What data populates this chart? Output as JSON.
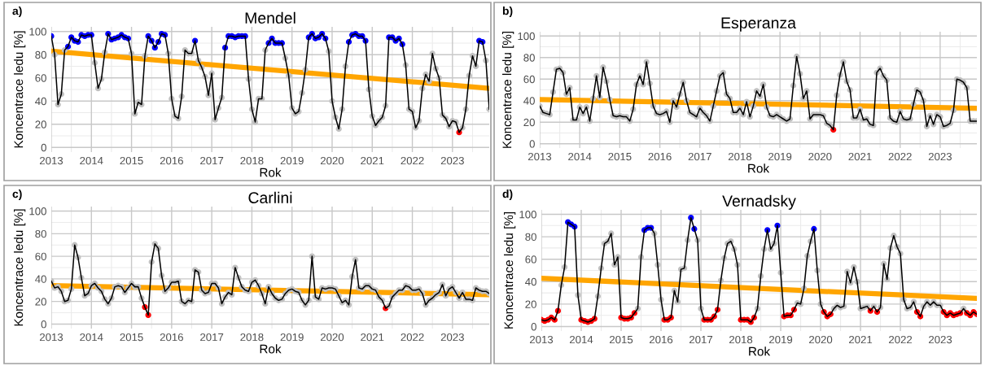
{
  "chart_data": [
    {
      "type": "line",
      "title": "Mendel",
      "xlabel": "Rok",
      "ylabel": "Koncentrace ledu [%]",
      "annotations": [
        "a)"
      ],
      "grid": true,
      "legend": false,
      "xlim": [
        "2013-01",
        "2023-12"
      ],
      "ylim": [
        -4,
        104
      ],
      "xticks": [
        "2013",
        "2014",
        "2015",
        "2016",
        "2017",
        "2018",
        "2019",
        "2020",
        "2021",
        "2022",
        "2023"
      ],
      "yticks": [
        0,
        20,
        40,
        60,
        80,
        100
      ],
      "x": [
        "2013-01",
        "2013-02",
        "2013-03",
        "2013-04",
        "2013-05",
        "2013-06",
        "2013-07",
        "2013-08",
        "2013-09",
        "2013-10",
        "2013-11",
        "2013-12",
        "2014-01",
        "2014-02",
        "2014-03",
        "2014-04",
        "2014-05",
        "2014-06",
        "2014-07",
        "2014-08",
        "2014-09",
        "2014-10",
        "2014-11",
        "2014-12",
        "2015-01",
        "2015-02",
        "2015-03",
        "2015-04",
        "2015-05",
        "2015-06",
        "2015-07",
        "2015-08",
        "2015-09",
        "2015-10",
        "2015-11",
        "2015-12",
        "2016-01",
        "2016-02",
        "2016-03",
        "2016-04",
        "2016-05",
        "2016-06",
        "2016-07",
        "2016-08",
        "2016-09",
        "2016-10",
        "2016-11",
        "2016-12",
        "2017-01",
        "2017-02",
        "2017-03",
        "2017-04",
        "2017-05",
        "2017-06",
        "2017-07",
        "2017-08",
        "2017-09",
        "2017-10",
        "2017-11",
        "2017-12",
        "2018-01",
        "2018-02",
        "2018-03",
        "2018-04",
        "2018-05",
        "2018-06",
        "2018-07",
        "2018-08",
        "2018-09",
        "2018-10",
        "2018-11",
        "2018-12",
        "2019-01",
        "2019-02",
        "2019-03",
        "2019-04",
        "2019-05",
        "2019-06",
        "2019-07",
        "2019-08",
        "2019-09",
        "2019-10",
        "2019-11",
        "2019-12",
        "2020-01",
        "2020-02",
        "2020-03",
        "2020-04",
        "2020-05",
        "2020-06",
        "2020-07",
        "2020-08",
        "2020-09",
        "2020-10",
        "2020-11",
        "2020-12",
        "2021-01",
        "2021-02",
        "2021-03",
        "2021-04",
        "2021-05",
        "2021-06",
        "2021-07",
        "2021-08",
        "2021-09",
        "2021-10",
        "2021-11",
        "2021-12",
        "2022-01",
        "2022-02",
        "2022-03",
        "2022-04",
        "2022-05",
        "2022-06",
        "2022-07",
        "2022-08",
        "2022-09",
        "2022-10",
        "2022-11",
        "2022-12",
        "2023-01",
        "2023-02",
        "2023-03",
        "2023-04",
        "2023-05",
        "2023-06",
        "2023-07",
        "2023-08",
        "2023-09",
        "2023-10",
        "2023-11",
        "2023-12"
      ],
      "series": [
        {
          "color": "#000000",
          "marker": "circle",
          "values": [
            96,
            80,
            37,
            46,
            84,
            87,
            95,
            92,
            91,
            97,
            96,
            97,
            97,
            73,
            51,
            59,
            82,
            98,
            93,
            94,
            95,
            97,
            95,
            94,
            81,
            29,
            39,
            37,
            79,
            96,
            92,
            86,
            91,
            98,
            97,
            81,
            42,
            27,
            25,
            44,
            84,
            81,
            81,
            92,
            75,
            69,
            61,
            45,
            64,
            24,
            34,
            43,
            86,
            96,
            96,
            95,
            96,
            96,
            96,
            59,
            33,
            22,
            42,
            42,
            84,
            90,
            94,
            90,
            90,
            90,
            77,
            62,
            34,
            29,
            31,
            47,
            67,
            95,
            98,
            94,
            95,
            98,
            94,
            83,
            40,
            26,
            16,
            33,
            70,
            91,
            97,
            98,
            96,
            96,
            92,
            50,
            27,
            19,
            23,
            26,
            36,
            95,
            95,
            92,
            94,
            89,
            71,
            33,
            31,
            17,
            23,
            51,
            63,
            57,
            81,
            68,
            60,
            28,
            25,
            18,
            23,
            22,
            13,
            17,
            33,
            62,
            79,
            70,
            92,
            91,
            75,
            33
          ],
          "colors": [
            "#0000ff",
            "#c0c0c0",
            "#c0c0c0",
            "#c0c0c0",
            "#c0c0c0",
            "#0000ff",
            "#0000ff",
            "#0000ff",
            "#0000ff",
            "#0000ff",
            "#0000ff",
            "#0000ff",
            "#0000ff",
            "#c0c0c0",
            "#c0c0c0",
            "#c0c0c0",
            "#c0c0c0",
            "#0000ff",
            "#0000ff",
            "#0000ff",
            "#0000ff",
            "#0000ff",
            "#0000ff",
            "#0000ff",
            "#c0c0c0",
            "#c0c0c0",
            "#c0c0c0",
            "#c0c0c0",
            "#c0c0c0",
            "#0000ff",
            "#0000ff",
            "#0000ff",
            "#0000ff",
            "#0000ff",
            "#0000ff",
            "#c0c0c0",
            "#c0c0c0",
            "#c0c0c0",
            "#c0c0c0",
            "#c0c0c0",
            "#c0c0c0",
            "#c0c0c0",
            "#c0c0c0",
            "#0000ff",
            "#c0c0c0",
            "#c0c0c0",
            "#c0c0c0",
            "#c0c0c0",
            "#c0c0c0",
            "#c0c0c0",
            "#c0c0c0",
            "#c0c0c0",
            "#0000ff",
            "#0000ff",
            "#0000ff",
            "#0000ff",
            "#0000ff",
            "#0000ff",
            "#0000ff",
            "#c0c0c0",
            "#c0c0c0",
            "#c0c0c0",
            "#c0c0c0",
            "#c0c0c0",
            "#c0c0c0",
            "#0000ff",
            "#0000ff",
            "#0000ff",
            "#0000ff",
            "#0000ff",
            "#c0c0c0",
            "#c0c0c0",
            "#c0c0c0",
            "#c0c0c0",
            "#c0c0c0",
            "#c0c0c0",
            "#c0c0c0",
            "#0000ff",
            "#0000ff",
            "#0000ff",
            "#0000ff",
            "#0000ff",
            "#0000ff",
            "#c0c0c0",
            "#c0c0c0",
            "#c0c0c0",
            "#c0c0c0",
            "#c0c0c0",
            "#c0c0c0",
            "#0000ff",
            "#0000ff",
            "#0000ff",
            "#0000ff",
            "#0000ff",
            "#0000ff",
            "#c0c0c0",
            "#c0c0c0",
            "#c0c0c0",
            "#c0c0c0",
            "#c0c0c0",
            "#c0c0c0",
            "#0000ff",
            "#0000ff",
            "#0000ff",
            "#0000ff",
            "#0000ff",
            "#c0c0c0",
            "#c0c0c0",
            "#c0c0c0",
            "#c0c0c0",
            "#c0c0c0",
            "#c0c0c0",
            "#c0c0c0",
            "#c0c0c0",
            "#c0c0c0",
            "#c0c0c0",
            "#c0c0c0",
            "#c0c0c0",
            "#c0c0c0",
            "#c0c0c0",
            "#c0c0c0",
            "#c0c0c0",
            "#ff0000",
            "#c0c0c0",
            "#c0c0c0",
            "#c0c0c0",
            "#c0c0c0",
            "#c0c0c0",
            "#0000ff",
            "#0000ff",
            "#c0c0c0",
            "#c0c0c0"
          ]
        },
        {
          "type": "line",
          "color": "#ffa500",
          "marker": "none",
          "x": [
            "2013-01",
            "2023-12"
          ],
          "values": [
            83,
            51
          ]
        }
      ]
    },
    {
      "type": "line",
      "title": "Esperanza",
      "xlabel": "Rok",
      "ylabel": "Koncentrace ledu [%]",
      "annotations": [
        "b)"
      ],
      "grid": true,
      "legend": false,
      "xlim": [
        "2013-01",
        "2023-12"
      ],
      "ylim": [
        -4,
        104
      ],
      "xticks": [
        "2013",
        "2014",
        "2015",
        "2016",
        "2017",
        "2018",
        "2019",
        "2020",
        "2021",
        "2022",
        "2023"
      ],
      "yticks": [
        0,
        20,
        40,
        60,
        80,
        100
      ],
      "x": [
        "2013-01",
        "2013-02",
        "2013-03",
        "2013-04",
        "2013-05",
        "2013-06",
        "2013-07",
        "2013-08",
        "2013-09",
        "2013-10",
        "2013-11",
        "2013-12",
        "2014-01",
        "2014-02",
        "2014-03",
        "2014-04",
        "2014-05",
        "2014-06",
        "2014-07",
        "2014-08",
        "2014-09",
        "2014-10",
        "2014-11",
        "2014-12",
        "2015-01",
        "2015-02",
        "2015-03",
        "2015-04",
        "2015-05",
        "2015-06",
        "2015-07",
        "2015-08",
        "2015-09",
        "2015-10",
        "2015-11",
        "2015-12",
        "2016-01",
        "2016-02",
        "2016-03",
        "2016-04",
        "2016-05",
        "2016-06",
        "2016-07",
        "2016-08",
        "2016-09",
        "2016-10",
        "2016-11",
        "2016-12",
        "2017-01",
        "2017-02",
        "2017-03",
        "2017-04",
        "2017-05",
        "2017-06",
        "2017-07",
        "2017-08",
        "2017-09",
        "2017-10",
        "2017-11",
        "2017-12",
        "2018-01",
        "2018-02",
        "2018-03",
        "2018-04",
        "2018-05",
        "2018-06",
        "2018-07",
        "2018-08",
        "2018-09",
        "2018-10",
        "2018-11",
        "2018-12",
        "2019-01",
        "2019-02",
        "2019-03",
        "2019-04",
        "2019-05",
        "2019-06",
        "2019-07",
        "2019-08",
        "2019-09",
        "2019-10",
        "2019-11",
        "2019-12",
        "2020-01",
        "2020-02",
        "2020-03",
        "2020-04",
        "2020-05",
        "2020-06",
        "2020-07",
        "2020-08",
        "2020-09",
        "2020-10",
        "2020-11",
        "2020-12",
        "2021-01",
        "2021-02",
        "2021-03",
        "2021-04",
        "2021-05",
        "2021-06",
        "2021-07",
        "2021-08",
        "2021-09",
        "2021-10",
        "2021-11",
        "2021-12",
        "2022-01",
        "2022-02",
        "2022-03",
        "2022-04",
        "2022-05",
        "2022-06",
        "2022-07",
        "2022-08",
        "2022-09",
        "2022-10",
        "2022-11",
        "2022-12",
        "2023-01",
        "2023-02",
        "2023-03",
        "2023-04",
        "2023-05",
        "2023-06",
        "2023-07",
        "2023-08",
        "2023-09",
        "2023-10",
        "2023-11",
        "2023-12"
      ],
      "series": [
        {
          "color": "#000000",
          "marker": "circle",
          "values": [
            35,
            29,
            28,
            27,
            48,
            69,
            70,
            66,
            46,
            52,
            22,
            22,
            34,
            28,
            34,
            21,
            42,
            63,
            43,
            71,
            58,
            41,
            26,
            25,
            26,
            25,
            25,
            21,
            32,
            55,
            63,
            55,
            76,
            56,
            35,
            28,
            27,
            28,
            30,
            20,
            40,
            34,
            46,
            57,
            40,
            29,
            27,
            25,
            33,
            29,
            26,
            21,
            35,
            49,
            63,
            66,
            46,
            42,
            29,
            29,
            33,
            27,
            39,
            25,
            35,
            49,
            44,
            55,
            34,
            26,
            25,
            27,
            25,
            23,
            21,
            23,
            54,
            81,
            65,
            42,
            49,
            23,
            27,
            27,
            27,
            26,
            19,
            17,
            13,
            45,
            64,
            76,
            58,
            50,
            24,
            24,
            32,
            22,
            23,
            18,
            17,
            66,
            70,
            63,
            59,
            24,
            21,
            20,
            30,
            23,
            22,
            23,
            37,
            50,
            48,
            40,
            16,
            26,
            18,
            27,
            25,
            16,
            17,
            19,
            31,
            60,
            59,
            57,
            52,
            21,
            21,
            21
          ],
          "colors": [
            "#c0c0c0",
            "#c0c0c0",
            "#c0c0c0",
            "#c0c0c0",
            "#c0c0c0",
            "#c0c0c0",
            "#c0c0c0",
            "#c0c0c0",
            "#c0c0c0",
            "#c0c0c0",
            "#c0c0c0",
            "#c0c0c0",
            "#c0c0c0",
            "#c0c0c0",
            "#c0c0c0",
            "#c0c0c0",
            "#c0c0c0",
            "#c0c0c0",
            "#c0c0c0",
            "#c0c0c0",
            "#c0c0c0",
            "#c0c0c0",
            "#c0c0c0",
            "#c0c0c0",
            "#c0c0c0",
            "#c0c0c0",
            "#c0c0c0",
            "#c0c0c0",
            "#c0c0c0",
            "#c0c0c0",
            "#c0c0c0",
            "#c0c0c0",
            "#c0c0c0",
            "#c0c0c0",
            "#c0c0c0",
            "#c0c0c0",
            "#c0c0c0",
            "#c0c0c0",
            "#c0c0c0",
            "#c0c0c0",
            "#c0c0c0",
            "#c0c0c0",
            "#c0c0c0",
            "#c0c0c0",
            "#c0c0c0",
            "#c0c0c0",
            "#c0c0c0",
            "#c0c0c0",
            "#c0c0c0",
            "#c0c0c0",
            "#c0c0c0",
            "#c0c0c0",
            "#c0c0c0",
            "#c0c0c0",
            "#c0c0c0",
            "#c0c0c0",
            "#c0c0c0",
            "#c0c0c0",
            "#c0c0c0",
            "#c0c0c0",
            "#c0c0c0",
            "#c0c0c0",
            "#c0c0c0",
            "#c0c0c0",
            "#c0c0c0",
            "#c0c0c0",
            "#c0c0c0",
            "#c0c0c0",
            "#c0c0c0",
            "#c0c0c0",
            "#c0c0c0",
            "#c0c0c0",
            "#c0c0c0",
            "#c0c0c0",
            "#c0c0c0",
            "#c0c0c0",
            "#c0c0c0",
            "#c0c0c0",
            "#c0c0c0",
            "#c0c0c0",
            "#c0c0c0",
            "#c0c0c0",
            "#c0c0c0",
            "#c0c0c0",
            "#c0c0c0",
            "#c0c0c0",
            "#c0c0c0",
            "#c0c0c0",
            "#ff0000",
            "#c0c0c0",
            "#c0c0c0",
            "#c0c0c0",
            "#c0c0c0",
            "#c0c0c0",
            "#c0c0c0",
            "#c0c0c0",
            "#c0c0c0",
            "#c0c0c0",
            "#c0c0c0",
            "#c0c0c0",
            "#c0c0c0",
            "#c0c0c0",
            "#c0c0c0",
            "#c0c0c0",
            "#c0c0c0",
            "#c0c0c0",
            "#c0c0c0",
            "#c0c0c0",
            "#c0c0c0",
            "#c0c0c0",
            "#c0c0c0",
            "#c0c0c0",
            "#c0c0c0",
            "#c0c0c0",
            "#c0c0c0",
            "#c0c0c0",
            "#c0c0c0",
            "#c0c0c0",
            "#c0c0c0",
            "#c0c0c0",
            "#c0c0c0",
            "#c0c0c0",
            "#c0c0c0",
            "#c0c0c0",
            "#c0c0c0",
            "#c0c0c0",
            "#c0c0c0",
            "#c0c0c0",
            "#c0c0c0",
            "#c0c0c0",
            "#c0c0c0",
            "#c0c0c0"
          ]
        },
        {
          "type": "line",
          "color": "#ffa500",
          "marker": "none",
          "x": [
            "2013-01",
            "2023-12"
          ],
          "values": [
            41,
            33
          ]
        }
      ]
    },
    {
      "type": "line",
      "title": "Carlini",
      "xlabel": "Rok",
      "ylabel": "Koncentrace ledu [%]",
      "annotations": [
        "c)"
      ],
      "grid": true,
      "legend": false,
      "xlim": [
        "2013-01",
        "2023-12"
      ],
      "ylim": [
        -4,
        104
      ],
      "xticks": [
        "2013",
        "2014",
        "2015",
        "2016",
        "2017",
        "2018",
        "2019",
        "2020",
        "2021",
        "2022",
        "2023"
      ],
      "yticks": [
        0,
        20,
        40,
        60,
        80,
        100
      ],
      "x": [
        "2013-01",
        "2013-02",
        "2013-03",
        "2013-04",
        "2013-05",
        "2013-06",
        "2013-07",
        "2013-08",
        "2013-09",
        "2013-10",
        "2013-11",
        "2013-12",
        "2014-01",
        "2014-02",
        "2014-03",
        "2014-04",
        "2014-05",
        "2014-06",
        "2014-07",
        "2014-08",
        "2014-09",
        "2014-10",
        "2014-11",
        "2014-12",
        "2015-01",
        "2015-02",
        "2015-03",
        "2015-04",
        "2015-05",
        "2015-06",
        "2015-07",
        "2015-08",
        "2015-09",
        "2015-10",
        "2015-11",
        "2015-12",
        "2016-01",
        "2016-02",
        "2016-03",
        "2016-04",
        "2016-05",
        "2016-06",
        "2016-07",
        "2016-08",
        "2016-09",
        "2016-10",
        "2016-11",
        "2016-12",
        "2017-01",
        "2017-02",
        "2017-03",
        "2017-04",
        "2017-05",
        "2017-06",
        "2017-07",
        "2017-08",
        "2017-09",
        "2017-10",
        "2017-11",
        "2017-12",
        "2018-01",
        "2018-02",
        "2018-03",
        "2018-04",
        "2018-05",
        "2018-06",
        "2018-07",
        "2018-08",
        "2018-09",
        "2018-10",
        "2018-11",
        "2018-12",
        "2019-01",
        "2019-02",
        "2019-03",
        "2019-04",
        "2019-05",
        "2019-06",
        "2019-07",
        "2019-08",
        "2019-09",
        "2019-10",
        "2019-11",
        "2019-12",
        "2020-01",
        "2020-02",
        "2020-03",
        "2020-04",
        "2020-05",
        "2020-06",
        "2020-07",
        "2020-08",
        "2020-09",
        "2020-10",
        "2020-11",
        "2020-12",
        "2021-01",
        "2021-02",
        "2021-03",
        "2021-04",
        "2021-05",
        "2021-06",
        "2021-07",
        "2021-08",
        "2021-09",
        "2021-10",
        "2021-11",
        "2021-12",
        "2022-01",
        "2022-02",
        "2022-03",
        "2022-04",
        "2022-05",
        "2022-06",
        "2022-07",
        "2022-08",
        "2022-09",
        "2022-10",
        "2022-11",
        "2022-12",
        "2023-01",
        "2023-02",
        "2023-03",
        "2023-04",
        "2023-05",
        "2023-06",
        "2023-07",
        "2023-08",
        "2023-09",
        "2023-10",
        "2023-11",
        "2023-12"
      ],
      "series": [
        {
          "color": "#000000",
          "marker": "circle",
          "values": [
            38,
            32,
            33,
            29,
            20,
            21,
            31,
            70,
            59,
            41,
            25,
            27,
            34,
            36,
            32,
            29,
            22,
            18,
            23,
            33,
            34,
            33,
            28,
            32,
            36,
            33,
            33,
            23,
            15,
            8,
            55,
            71,
            67,
            43,
            29,
            32,
            37,
            37,
            38,
            20,
            18,
            21,
            20,
            48,
            46,
            30,
            27,
            28,
            36,
            36,
            32,
            18,
            24,
            28,
            26,
            50,
            41,
            33,
            30,
            29,
            37,
            39,
            34,
            27,
            18,
            33,
            27,
            23,
            21,
            22,
            27,
            30,
            31,
            29,
            28,
            21,
            17,
            21,
            60,
            24,
            22,
            32,
            31,
            32,
            32,
            31,
            25,
            19,
            21,
            17,
            42,
            57,
            32,
            31,
            34,
            34,
            31,
            30,
            24,
            21,
            14,
            16,
            24,
            27,
            30,
            30,
            34,
            33,
            30,
            30,
            31,
            27,
            17,
            21,
            23,
            26,
            28,
            35,
            25,
            31,
            33,
            28,
            23,
            28,
            22,
            22,
            21,
            32,
            30,
            29,
            29,
            27
          ],
          "colors": [
            "#c0c0c0",
            "#c0c0c0",
            "#c0c0c0",
            "#c0c0c0",
            "#c0c0c0",
            "#c0c0c0",
            "#c0c0c0",
            "#c0c0c0",
            "#c0c0c0",
            "#c0c0c0",
            "#c0c0c0",
            "#c0c0c0",
            "#c0c0c0",
            "#c0c0c0",
            "#c0c0c0",
            "#c0c0c0",
            "#c0c0c0",
            "#c0c0c0",
            "#c0c0c0",
            "#c0c0c0",
            "#c0c0c0",
            "#c0c0c0",
            "#c0c0c0",
            "#c0c0c0",
            "#c0c0c0",
            "#c0c0c0",
            "#c0c0c0",
            "#c0c0c0",
            "#ff0000",
            "#ff0000",
            "#c0c0c0",
            "#c0c0c0",
            "#c0c0c0",
            "#c0c0c0",
            "#c0c0c0",
            "#c0c0c0",
            "#c0c0c0",
            "#c0c0c0",
            "#c0c0c0",
            "#c0c0c0",
            "#c0c0c0",
            "#c0c0c0",
            "#c0c0c0",
            "#c0c0c0",
            "#c0c0c0",
            "#c0c0c0",
            "#c0c0c0",
            "#c0c0c0",
            "#c0c0c0",
            "#c0c0c0",
            "#c0c0c0",
            "#c0c0c0",
            "#c0c0c0",
            "#c0c0c0",
            "#c0c0c0",
            "#c0c0c0",
            "#c0c0c0",
            "#c0c0c0",
            "#c0c0c0",
            "#c0c0c0",
            "#c0c0c0",
            "#c0c0c0",
            "#c0c0c0",
            "#c0c0c0",
            "#c0c0c0",
            "#c0c0c0",
            "#c0c0c0",
            "#c0c0c0",
            "#c0c0c0",
            "#c0c0c0",
            "#c0c0c0",
            "#c0c0c0",
            "#c0c0c0",
            "#c0c0c0",
            "#c0c0c0",
            "#c0c0c0",
            "#c0c0c0",
            "#c0c0c0",
            "#c0c0c0",
            "#c0c0c0",
            "#c0c0c0",
            "#c0c0c0",
            "#c0c0c0",
            "#c0c0c0",
            "#c0c0c0",
            "#c0c0c0",
            "#c0c0c0",
            "#c0c0c0",
            "#c0c0c0",
            "#c0c0c0",
            "#c0c0c0",
            "#c0c0c0",
            "#c0c0c0",
            "#c0c0c0",
            "#c0c0c0",
            "#c0c0c0",
            "#c0c0c0",
            "#c0c0c0",
            "#c0c0c0",
            "#c0c0c0",
            "#ff0000",
            "#c0c0c0",
            "#c0c0c0",
            "#c0c0c0",
            "#c0c0c0",
            "#c0c0c0",
            "#c0c0c0",
            "#c0c0c0",
            "#c0c0c0",
            "#c0c0c0",
            "#c0c0c0",
            "#c0c0c0",
            "#c0c0c0",
            "#c0c0c0",
            "#c0c0c0",
            "#c0c0c0",
            "#c0c0c0",
            "#c0c0c0",
            "#c0c0c0",
            "#c0c0c0",
            "#c0c0c0",
            "#c0c0c0",
            "#c0c0c0",
            "#c0c0c0",
            "#c0c0c0",
            "#c0c0c0",
            "#c0c0c0",
            "#c0c0c0",
            "#c0c0c0",
            "#c0c0c0",
            "#c0c0c0",
            "#c0c0c0"
          ]
        },
        {
          "type": "line",
          "color": "#ffa500",
          "marker": "none",
          "x": [
            "2013-01",
            "2023-12"
          ],
          "values": [
            34,
            26
          ]
        }
      ]
    },
    {
      "type": "line",
      "title": "Vernadsky",
      "xlabel": "Rok",
      "ylabel": "Koncentrace ledu [%]",
      "annotations": [
        "d)"
      ],
      "grid": true,
      "legend": false,
      "xlim": [
        "2013-01",
        "2023-12"
      ],
      "ylim": [
        -4,
        104
      ],
      "xticks": [
        "2013",
        "2014",
        "2015",
        "2016",
        "2017",
        "2018",
        "2019",
        "2020",
        "2021",
        "2022",
        "2023"
      ],
      "yticks": [
        0,
        20,
        40,
        60,
        80,
        100
      ],
      "x": [
        "2013-01",
        "2013-02",
        "2013-03",
        "2013-04",
        "2013-05",
        "2013-06",
        "2013-07",
        "2013-08",
        "2013-09",
        "2013-10",
        "2013-11",
        "2013-12",
        "2014-01",
        "2014-02",
        "2014-03",
        "2014-04",
        "2014-05",
        "2014-06",
        "2014-07",
        "2014-08",
        "2014-09",
        "2014-10",
        "2014-11",
        "2014-12",
        "2015-01",
        "2015-02",
        "2015-03",
        "2015-04",
        "2015-05",
        "2015-06",
        "2015-07",
        "2015-08",
        "2015-09",
        "2015-10",
        "2015-11",
        "2015-12",
        "2016-01",
        "2016-02",
        "2016-03",
        "2016-04",
        "2016-05",
        "2016-06",
        "2016-07",
        "2016-08",
        "2016-09",
        "2016-10",
        "2016-11",
        "2016-12",
        "2017-01",
        "2017-02",
        "2017-03",
        "2017-04",
        "2017-05",
        "2017-06",
        "2017-07",
        "2017-08",
        "2017-09",
        "2017-10",
        "2017-11",
        "2017-12",
        "2018-01",
        "2018-02",
        "2018-03",
        "2018-04",
        "2018-05",
        "2018-06",
        "2018-07",
        "2018-08",
        "2018-09",
        "2018-10",
        "2018-11",
        "2018-12",
        "2019-01",
        "2019-02",
        "2019-03",
        "2019-04",
        "2019-05",
        "2019-06",
        "2019-07",
        "2019-08",
        "2019-09",
        "2019-10",
        "2019-11",
        "2019-12",
        "2020-01",
        "2020-02",
        "2020-03",
        "2020-04",
        "2020-05",
        "2020-06",
        "2020-07",
        "2020-08",
        "2020-09",
        "2020-10",
        "2020-11",
        "2020-12",
        "2021-01",
        "2021-02",
        "2021-03",
        "2021-04",
        "2021-05",
        "2021-06",
        "2021-07",
        "2021-08",
        "2021-09",
        "2021-10",
        "2021-11",
        "2021-12",
        "2022-01",
        "2022-02",
        "2022-03",
        "2022-04",
        "2022-05",
        "2022-06",
        "2022-07",
        "2022-08",
        "2022-09",
        "2022-10",
        "2022-11",
        "2022-12",
        "2023-01",
        "2023-02",
        "2023-03",
        "2023-04",
        "2023-05",
        "2023-06",
        "2023-07",
        "2023-08",
        "2023-09",
        "2023-10",
        "2023-11",
        "2023-12"
      ],
      "series": [
        {
          "color": "#000000",
          "marker": "circle",
          "values": [
            6,
            5,
            6,
            8,
            6,
            14,
            37,
            53,
            93,
            91,
            89,
            28,
            6,
            5,
            4,
            5,
            7,
            27,
            52,
            74,
            76,
            83,
            55,
            62,
            8,
            7,
            7,
            8,
            12,
            16,
            62,
            86,
            88,
            88,
            83,
            55,
            24,
            6,
            6,
            8,
            32,
            22,
            51,
            52,
            77,
            97,
            87,
            77,
            16,
            6,
            6,
            6,
            9,
            15,
            41,
            61,
            74,
            76,
            69,
            55,
            6,
            6,
            6,
            4,
            8,
            16,
            45,
            69,
            86,
            69,
            74,
            90,
            48,
            9,
            10,
            10,
            15,
            21,
            20,
            34,
            63,
            76,
            87,
            50,
            20,
            13,
            9,
            11,
            16,
            19,
            17,
            18,
            49,
            39,
            53,
            40,
            16,
            17,
            18,
            14,
            18,
            13,
            17,
            56,
            42,
            70,
            81,
            71,
            65,
            24,
            16,
            17,
            22,
            13,
            9,
            18,
            22,
            19,
            22,
            19,
            19,
            13,
            10,
            12,
            10,
            11,
            12,
            16,
            12,
            10,
            13,
            11
          ],
          "colors": [
            "#ff0000",
            "#ff0000",
            "#ff0000",
            "#ff0000",
            "#ff0000",
            "#ff0000",
            "#c0c0c0",
            "#c0c0c0",
            "#0000ff",
            "#0000ff",
            "#0000ff",
            "#c0c0c0",
            "#ff0000",
            "#ff0000",
            "#ff0000",
            "#ff0000",
            "#ff0000",
            "#c0c0c0",
            "#c0c0c0",
            "#c0c0c0",
            "#c0c0c0",
            "#c0c0c0",
            "#c0c0c0",
            "#c0c0c0",
            "#ff0000",
            "#ff0000",
            "#ff0000",
            "#ff0000",
            "#ff0000",
            "#c0c0c0",
            "#c0c0c0",
            "#0000ff",
            "#0000ff",
            "#0000ff",
            "#c0c0c0",
            "#c0c0c0",
            "#c0c0c0",
            "#ff0000",
            "#ff0000",
            "#ff0000",
            "#c0c0c0",
            "#c0c0c0",
            "#c0c0c0",
            "#c0c0c0",
            "#c0c0c0",
            "#0000ff",
            "#0000ff",
            "#c0c0c0",
            "#c0c0c0",
            "#ff0000",
            "#ff0000",
            "#ff0000",
            "#ff0000",
            "#ff0000",
            "#c0c0c0",
            "#c0c0c0",
            "#c0c0c0",
            "#c0c0c0",
            "#c0c0c0",
            "#c0c0c0",
            "#ff0000",
            "#ff0000",
            "#ff0000",
            "#ff0000",
            "#ff0000",
            "#c0c0c0",
            "#c0c0c0",
            "#c0c0c0",
            "#0000ff",
            "#c0c0c0",
            "#c0c0c0",
            "#0000ff",
            "#c0c0c0",
            "#ff0000",
            "#ff0000",
            "#ff0000",
            "#ff0000",
            "#c0c0c0",
            "#c0c0c0",
            "#c0c0c0",
            "#c0c0c0",
            "#c0c0c0",
            "#0000ff",
            "#c0c0c0",
            "#c0c0c0",
            "#ff0000",
            "#ff0000",
            "#ff0000",
            "#c0c0c0",
            "#c0c0c0",
            "#c0c0c0",
            "#c0c0c0",
            "#c0c0c0",
            "#c0c0c0",
            "#c0c0c0",
            "#c0c0c0",
            "#c0c0c0",
            "#c0c0c0",
            "#c0c0c0",
            "#ff0000",
            "#c0c0c0",
            "#ff0000",
            "#c0c0c0",
            "#c0c0c0",
            "#c0c0c0",
            "#c0c0c0",
            "#c0c0c0",
            "#c0c0c0",
            "#c0c0c0",
            "#c0c0c0",
            "#c0c0c0",
            "#c0c0c0",
            "#c0c0c0",
            "#ff0000",
            "#ff0000",
            "#c0c0c0",
            "#c0c0c0",
            "#c0c0c0",
            "#c0c0c0",
            "#c0c0c0",
            "#c0c0c0",
            "#ff0000",
            "#ff0000",
            "#ff0000",
            "#ff0000",
            "#ff0000",
            "#ff0000",
            "#c0c0c0",
            "#ff0000",
            "#ff0000",
            "#ff0000",
            "#ff0000"
          ]
        },
        {
          "type": "line",
          "color": "#ffa500",
          "marker": "none",
          "x": [
            "2013-01",
            "2023-12"
          ],
          "values": [
            43,
            25
          ]
        }
      ]
    }
  ]
}
